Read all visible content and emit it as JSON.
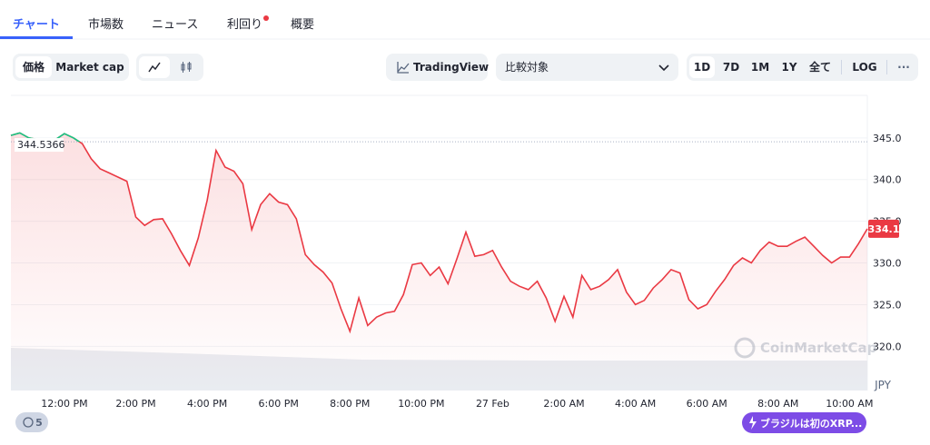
{
  "tabs": [
    "チャート",
    "市場数",
    "ニュース",
    "利回り",
    "概要"
  ],
  "toolbar": {
    "price": "価格",
    "market_cap": "Market cap",
    "tradingview": "TradingView",
    "compare": "比較対象",
    "ranges": [
      "1D",
      "7D",
      "1M",
      "1Y",
      "全て"
    ],
    "log": "LOG",
    "more": "···"
  },
  "watermark": "CoinMarketCap",
  "currency": "JPY",
  "badge_count": "5",
  "news": "ブラジルは初のXRP...",
  "chart_data": {
    "type": "line",
    "categories": [
      null,
      null,
      null,
      null,
      null,
      null,
      "12:00 PM",
      null,
      null,
      null,
      null,
      null,
      null,
      null,
      "2:00 PM",
      null,
      null,
      null,
      null,
      null,
      null,
      null,
      "4:00 PM",
      null,
      null,
      null,
      null,
      null,
      null,
      null,
      "6:00 PM",
      null,
      null,
      null,
      null,
      null,
      null,
      null,
      "8:00 PM",
      null,
      null,
      null,
      null,
      null,
      null,
      null,
      "10:00 PM",
      null,
      null,
      null,
      null,
      null,
      null,
      null,
      "27 Feb",
      null,
      null,
      null,
      null,
      null,
      null,
      null,
      "2:00 AM",
      null,
      null,
      null,
      null,
      null,
      null,
      null,
      "4:00 AM",
      null,
      null,
      null,
      null,
      null,
      null,
      null,
      "6:00 AM",
      null,
      null,
      null,
      null,
      null,
      null,
      null,
      "8:00 AM",
      null,
      null,
      null,
      null,
      null,
      null,
      null,
      "10:00 AM",
      null,
      null
    ],
    "values": [
      345.3,
      345.6,
      345.0,
      344.8,
      344.5,
      344.8,
      345.5,
      345.0,
      344.3,
      342.5,
      341.3,
      340.8,
      340.3,
      339.8,
      335.5,
      334.5,
      335.2,
      335.3,
      333.5,
      331.5,
      329.7,
      333.0,
      337.5,
      343.5,
      341.5,
      341.0,
      339.5,
      334.0,
      337.0,
      338.3,
      337.3,
      337.0,
      335.3,
      331.0,
      329.8,
      328.9,
      327.6,
      324.5,
      321.8,
      325.8,
      322.5,
      323.5,
      324.0,
      324.2,
      326.2,
      329.8,
      330.0,
      328.5,
      329.5,
      327.5,
      330.5,
      333.7,
      330.8,
      331.0,
      331.5,
      329.5,
      327.8,
      327.2,
      326.8,
      327.8,
      325.8,
      323.0,
      326.0,
      323.5,
      328.5,
      326.8,
      327.2,
      328.0,
      329.2,
      326.5,
      325.0,
      325.5,
      327.0,
      328.0,
      329.2,
      328.8,
      325.6,
      324.5,
      325.0,
      326.6,
      328.0,
      329.7,
      330.6,
      330.0,
      331.5,
      332.5,
      332.0,
      332.0,
      332.6,
      333.1,
      332.0,
      330.9,
      330.0,
      330.7,
      330.7,
      332.3,
      334.1
    ],
    "color": "#ea3943",
    "up_color": "#16c784",
    "reference_value": 344.5366,
    "ylim": [
      314.7,
      350.1
    ],
    "yticks": [
      {
        "value": 320,
        "label": "320.0"
      },
      {
        "value": 325,
        "label": "325.0"
      },
      {
        "value": 330,
        "label": "330.0"
      },
      {
        "value": 335,
        "label": "335.0"
      },
      {
        "value": 340,
        "label": "340.0"
      },
      {
        "value": 345,
        "label": "345.0"
      }
    ],
    "grid": true
  }
}
